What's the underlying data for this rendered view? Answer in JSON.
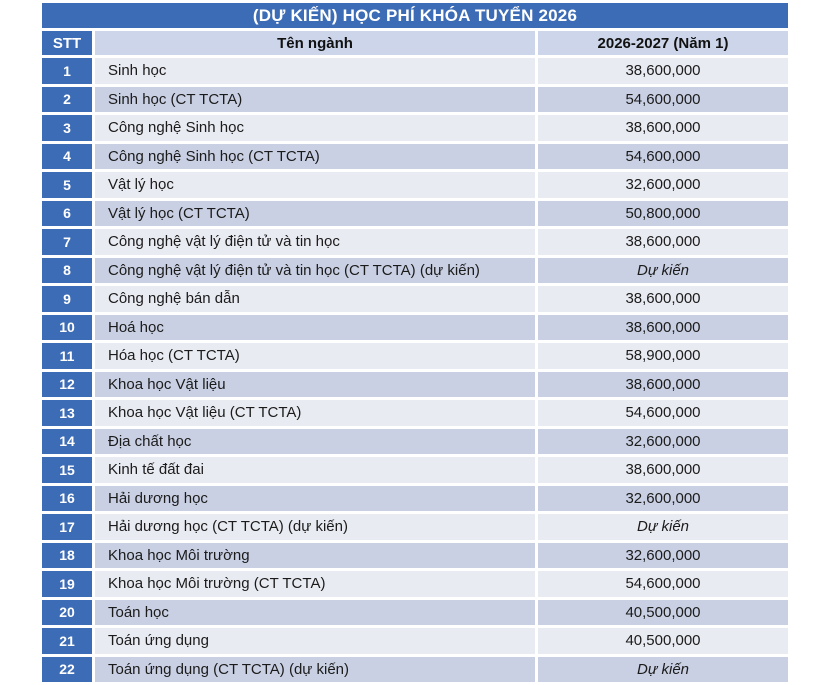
{
  "title": "(DỰ KIẾN) HỌC PHÍ KHÓA TUYỂN 2026",
  "table": {
    "columns": {
      "stt": "STT",
      "nganh": "Tên ngành",
      "fee": "2026-2027 (Năm 1)"
    },
    "rows": [
      {
        "stt": "1",
        "name": "Sinh học",
        "fee": "38,600,000",
        "italic": false
      },
      {
        "stt": "2",
        "name": "Sinh học (CT TCTA)",
        "fee": "54,600,000",
        "italic": false
      },
      {
        "stt": "3",
        "name": "Công nghệ Sinh học",
        "fee": "38,600,000",
        "italic": false
      },
      {
        "stt": "4",
        "name": "Công nghệ Sinh học (CT TCTA)",
        "fee": "54,600,000",
        "italic": false
      },
      {
        "stt": "5",
        "name": "Vật lý học",
        "fee": "32,600,000",
        "italic": false
      },
      {
        "stt": "6",
        "name": "Vật lý học (CT TCTA)",
        "fee": "50,800,000",
        "italic": false
      },
      {
        "stt": "7",
        "name": "Công nghệ vật lý điện tử và tin học",
        "fee": "38,600,000",
        "italic": false
      },
      {
        "stt": "8",
        "name": "Công nghệ vật lý điện tử và tin học (CT TCTA) (dự kiến)",
        "fee": "Dự kiến",
        "italic": true
      },
      {
        "stt": "9",
        "name": "Công nghệ bán dẫn",
        "fee": "38,600,000",
        "italic": false
      },
      {
        "stt": "10",
        "name": "Hoá học",
        "fee": "38,600,000",
        "italic": false
      },
      {
        "stt": "11",
        "name": "Hóa học (CT TCTA)",
        "fee": "58,900,000",
        "italic": false
      },
      {
        "stt": "12",
        "name": "Khoa học Vật liệu",
        "fee": "38,600,000",
        "italic": false
      },
      {
        "stt": "13",
        "name": "Khoa học Vật liệu (CT TCTA)",
        "fee": "54,600,000",
        "italic": false
      },
      {
        "stt": "14",
        "name": "Địa chất học",
        "fee": "32,600,000",
        "italic": false
      },
      {
        "stt": "15",
        "name": "Kinh tế đất đai",
        "fee": "38,600,000",
        "italic": false
      },
      {
        "stt": "16",
        "name": "Hải dương học",
        "fee": "32,600,000",
        "italic": false
      },
      {
        "stt": "17",
        "name": "Hải dương học (CT TCTA) (dự kiến)",
        "fee": "Dự kiến",
        "italic": true
      },
      {
        "stt": "18",
        "name": "Khoa học Môi trường",
        "fee": "32,600,000",
        "italic": false
      },
      {
        "stt": "19",
        "name": "Khoa học Môi trường (CT TCTA)",
        "fee": "54,600,000",
        "italic": false
      },
      {
        "stt": "20",
        "name": "Toán học",
        "fee": "40,500,000",
        "italic": false
      },
      {
        "stt": "21",
        "name": "Toán ứng dụng",
        "fee": "40,500,000",
        "italic": false
      },
      {
        "stt": "22",
        "name": "Toán ứng dụng (CT TCTA) (dự kiến)",
        "fee": "Dự kiến",
        "italic": true
      }
    ]
  },
  "colors": {
    "primary_blue": "#3D6CB6",
    "header_cell_bg": "#CCD5E9",
    "row_light": "#E9EBF2",
    "row_dark": "#C9D0E3",
    "text_dark": "#1B1B1B"
  }
}
